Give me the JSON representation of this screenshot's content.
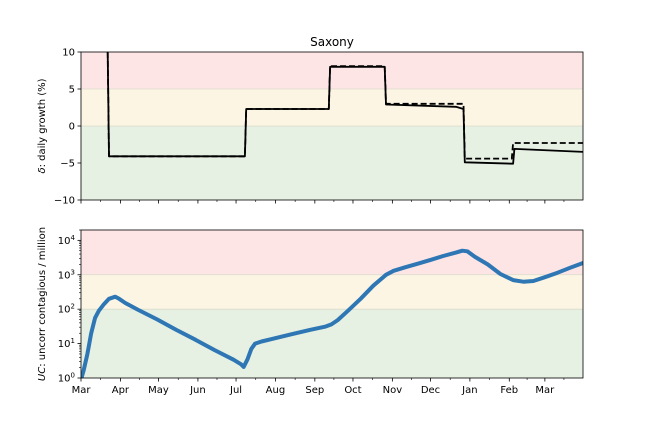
{
  "chart_data": [
    {
      "type": "line",
      "title": "Saxony",
      "ylabel_prefix": "δ",
      "ylabel_suffix": ": daily growth (%)",
      "ylim": [
        -10,
        10
      ],
      "yticks": [
        "10",
        "5",
        "0",
        "−5",
        "−10"
      ],
      "ytick_values": [
        10,
        5,
        0,
        -5,
        -10
      ],
      "x_month_ticks": [
        "Mar",
        "Apr",
        "May",
        "Jun",
        "Jul",
        "Aug",
        "Sep",
        "Oct",
        "Nov",
        "Dec",
        "Jan",
        "Feb",
        "Mar"
      ],
      "x_month_values": [
        0,
        31,
        61,
        92,
        122,
        153,
        184,
        214,
        245,
        275,
        306,
        337,
        365
      ],
      "xlim_days": [
        0,
        395
      ],
      "bands": [
        {
          "from": 5,
          "to": 10,
          "color": "#fde4e5"
        },
        {
          "from": 0,
          "to": 5,
          "color": "#fdf5e4"
        },
        {
          "from": -10,
          "to": 0,
          "color": "#e6f0e3"
        }
      ],
      "series": [
        {
          "style": "solid",
          "color": "#000000",
          "points": [
            [
              21,
              10
            ],
            [
              22,
              -4.1
            ],
            [
              129,
              -4.1
            ],
            [
              130,
              2.3
            ],
            [
              195,
              2.3
            ],
            [
              196,
              8.0
            ],
            [
              239,
              8.0
            ],
            [
              240,
              2.9
            ],
            [
              295,
              2.6
            ],
            [
              301,
              2.3
            ],
            [
              302,
              -4.9
            ],
            [
              340,
              -5.1
            ],
            [
              341,
              -3.1
            ],
            [
              395,
              -3.5
            ]
          ]
        },
        {
          "style": "dashed",
          "color": "#000000",
          "points": [
            [
              21,
              10
            ],
            [
              22,
              -4.1
            ],
            [
              129,
              -4.1
            ],
            [
              130,
              2.3
            ],
            [
              195,
              2.3
            ],
            [
              196,
              8.1
            ],
            [
              239,
              8.1
            ],
            [
              240,
              3.0
            ],
            [
              301,
              3.0
            ],
            [
              302,
              -4.4
            ],
            [
              339,
              -4.4
            ],
            [
              340,
              -2.3
            ],
            [
              395,
              -2.3
            ]
          ]
        }
      ]
    },
    {
      "type": "line",
      "ylabel_prefix": "UC",
      "ylabel_suffix": ": uncorr contagious / million",
      "yscale": "log",
      "ylim": [
        1,
        20000
      ],
      "yticks": [
        {
          "base": "10",
          "exp": "0",
          "value": 1
        },
        {
          "base": "10",
          "exp": "1",
          "value": 10
        },
        {
          "base": "10",
          "exp": "2",
          "value": 100
        },
        {
          "base": "10",
          "exp": "3",
          "value": 1000
        },
        {
          "base": "10",
          "exp": "4",
          "value": 10000
        }
      ],
      "x_month_ticks": [
        "Mar",
        "Apr",
        "May",
        "Jun",
        "Jul",
        "Aug",
        "Sep",
        "Oct",
        "Nov",
        "Dec",
        "Jan",
        "Feb",
        "Mar"
      ],
      "x_month_values": [
        0,
        31,
        61,
        92,
        122,
        153,
        184,
        214,
        245,
        275,
        306,
        337,
        365
      ],
      "xlim_days": [
        0,
        395
      ],
      "bands": [
        {
          "from": 1000,
          "to": 20000,
          "color": "#fde4e5"
        },
        {
          "from": 100,
          "to": 1000,
          "color": "#fdf5e4"
        },
        {
          "from": 1,
          "to": 100,
          "color": "#e6f0e3"
        }
      ],
      "series": [
        {
          "style": "solid",
          "color": "#2e77b4",
          "points": [
            [
              0,
              0.9
            ],
            [
              2,
              1.6
            ],
            [
              5,
              5
            ],
            [
              8,
              20
            ],
            [
              11,
              55
            ],
            [
              14,
              90
            ],
            [
              18,
              140
            ],
            [
              22,
              200
            ],
            [
              27,
              230
            ],
            [
              30,
              200
            ],
            [
              35,
              150
            ],
            [
              45,
              95
            ],
            [
              60,
              50
            ],
            [
              75,
              25
            ],
            [
              90,
              13
            ],
            [
              105,
              6.5
            ],
            [
              120,
              3.4
            ],
            [
              126,
              2.5
            ],
            [
              128,
              2.1
            ],
            [
              131,
              3.5
            ],
            [
              134,
              7
            ],
            [
              137,
              10
            ],
            [
              142,
              11.5
            ],
            [
              150,
              13.5
            ],
            [
              165,
              18.5
            ],
            [
              180,
              25
            ],
            [
              192,
              31
            ],
            [
              197,
              36
            ],
            [
              202,
              48
            ],
            [
              210,
              90
            ],
            [
              220,
              200
            ],
            [
              230,
              480
            ],
            [
              240,
              1000
            ],
            [
              246,
              1300
            ],
            [
              255,
              1650
            ],
            [
              265,
              2100
            ],
            [
              275,
              2700
            ],
            [
              285,
              3500
            ],
            [
              295,
              4400
            ],
            [
              300,
              5000
            ],
            [
              304,
              4800
            ],
            [
              310,
              3300
            ],
            [
              320,
              2000
            ],
            [
              330,
              1050
            ],
            [
              340,
              700
            ],
            [
              348,
              630
            ],
            [
              356,
              660
            ],
            [
              365,
              850
            ],
            [
              375,
              1150
            ],
            [
              385,
              1600
            ],
            [
              395,
              2200
            ]
          ]
        }
      ]
    }
  ]
}
